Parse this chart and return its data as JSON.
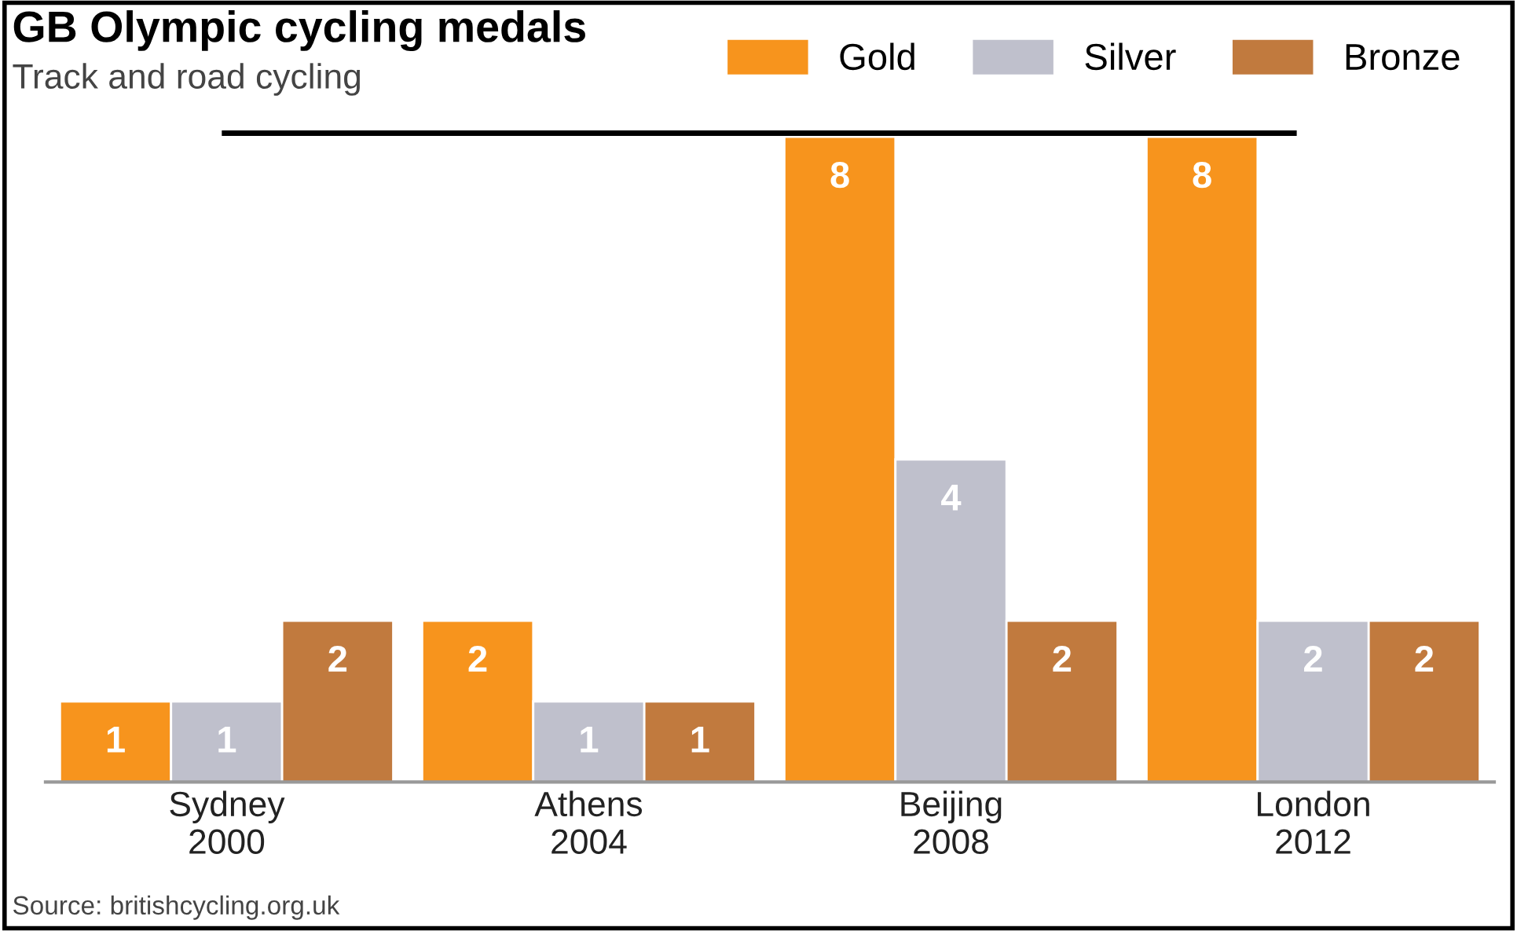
{
  "chart_data": {
    "type": "bar",
    "title": "GB Olympic cycling medals",
    "subtitle": "Track and road cycling",
    "categories": [
      "Sydney\n2000",
      "Athens\n2004",
      "Beijing\n2008",
      "London\n2012"
    ],
    "series": [
      {
        "name": "Gold",
        "color": "#f7941d",
        "values": [
          1,
          2,
          8,
          8
        ]
      },
      {
        "name": "Silver",
        "color": "#bfc0cc",
        "values": [
          1,
          1,
          4,
          2
        ]
      },
      {
        "name": "Bronze",
        "color": "#c17a3e",
        "values": [
          2,
          1,
          2,
          2
        ]
      }
    ],
    "data_labels": true,
    "grid": false,
    "legend": "top right",
    "tick_labels": "x",
    "annotations": [
      "Source: britishcycling.org.uk"
    ]
  }
}
